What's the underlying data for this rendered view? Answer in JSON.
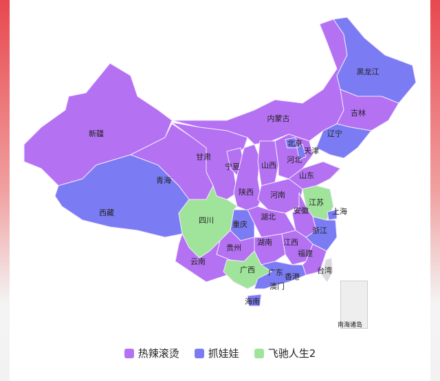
{
  "colors": {
    "热辣滚烫": "#b471f2",
    "抓娃娃": "#7b7cf3",
    "飞驰人生2": "#9fe49a",
    "none": "#d9d9d9"
  },
  "legend": [
    {
      "label": "热辣滚烫"
    },
    {
      "label": "抓娃娃"
    },
    {
      "label": "飞驰人生2"
    }
  ],
  "provinces": {
    "xinjiang": {
      "name": "新疆",
      "movie": "热辣滚烫"
    },
    "xizang": {
      "name": "西藏",
      "movie": "抓娃娃"
    },
    "qinghai": {
      "name": "青海",
      "movie": "热辣滚烫"
    },
    "gansu": {
      "name": "甘肃",
      "movie": "热辣滚烫"
    },
    "neimenggu": {
      "name": "内蒙古",
      "movie": "热辣滚烫"
    },
    "heilongjiang": {
      "name": "黑龙江",
      "movie": "抓娃娃"
    },
    "jilin": {
      "name": "吉林",
      "movie": "热辣滚烫"
    },
    "liaoning": {
      "name": "辽宁",
      "movie": "抓娃娃"
    },
    "ningxia": {
      "name": "宁夏",
      "movie": "热辣滚烫"
    },
    "shaanxi": {
      "name": "陕西",
      "movie": "热辣滚烫"
    },
    "shanxi": {
      "name": "山西",
      "movie": "热辣滚烫"
    },
    "hebei": {
      "name": "河北",
      "movie": "热辣滚烫"
    },
    "beijing": {
      "name": "北京",
      "movie": "抓娃娃"
    },
    "tianjin": {
      "name": "天津",
      "movie": "抓娃娃"
    },
    "shandong": {
      "name": "山东",
      "movie": "热辣滚烫"
    },
    "henan": {
      "name": "河南",
      "movie": "热辣滚烫"
    },
    "jiangsu": {
      "name": "江苏",
      "movie": "飞驰人生2"
    },
    "shanghai": {
      "name": "上海",
      "movie": "抓娃娃"
    },
    "anhui": {
      "name": "安徽",
      "movie": "热辣滚烫"
    },
    "zhejiang": {
      "name": "浙江",
      "movie": "抓娃娃"
    },
    "hubei": {
      "name": "湖北",
      "movie": "热辣滚烫"
    },
    "chongqing": {
      "name": "重庆",
      "movie": "抓娃娃"
    },
    "sichuan": {
      "name": "四川",
      "movie": "飞驰人生2"
    },
    "hunan": {
      "name": "湖南",
      "movie": "热辣滚烫"
    },
    "jiangxi": {
      "name": "江西",
      "movie": "热辣滚烫"
    },
    "fujian": {
      "name": "福建",
      "movie": "热辣滚烫"
    },
    "guizhou": {
      "name": "贵州",
      "movie": "热辣滚烫"
    },
    "yunnan": {
      "name": "云南",
      "movie": "热辣滚烫"
    },
    "guangxi": {
      "name": "广西",
      "movie": "飞驰人生2"
    },
    "guangdong": {
      "name": "广东",
      "movie": "抓娃娃"
    },
    "hainan": {
      "name": "海南",
      "movie": "抓娃娃"
    },
    "taiwan": {
      "name": "台湾",
      "movie": "none"
    },
    "xianggang": {
      "name": "香港",
      "movie": "none"
    },
    "aomen": {
      "name": "澳门",
      "movie": "none"
    }
  },
  "inset": {
    "label": "南海诸岛"
  }
}
